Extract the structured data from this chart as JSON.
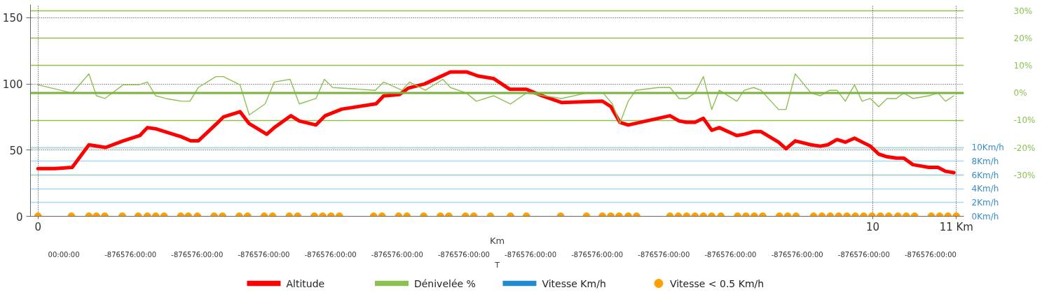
{
  "chart_data": {
    "type": "line",
    "xlabel": "Km",
    "x2label": "T",
    "xlim": [
      -0.09,
      11.09
    ],
    "xticks": [
      0,
      10,
      {
        "value": 11,
        "label": "11 Km"
      }
    ],
    "annotations": [
      "00:00:00",
      "-876576:00:00",
      "-876576:00:00",
      "-876576:00:00",
      "-876576:00:00",
      "-876576:00:00",
      "-876576:00:00",
      "-876576:00:00",
      "-876576:00:00",
      "-876576:00:00",
      "-876576:00:00",
      "-876576:00:00",
      "-876576:00:00",
      "-876576:00:00"
    ],
    "ylim": [
      0,
      160
    ],
    "yticks": [
      0,
      50,
      100,
      150
    ],
    "y2lim": [
      -45,
      32.3
    ],
    "y2ticks": [
      {
        "value": -30,
        "label": "-30%"
      },
      {
        "value": -20,
        "label": "-20%"
      },
      {
        "value": -10,
        "label": "-10%"
      },
      {
        "value": 0,
        "label": "0%"
      },
      {
        "value": 10,
        "label": "10%"
      },
      {
        "value": 20,
        "label": "20%"
      },
      {
        "value": 30,
        "label": "30%"
      }
    ],
    "y3lim": [
      0,
      30.85
    ],
    "y3ticks": [
      {
        "value": 0,
        "label": "0Km/h"
      },
      {
        "value": 2,
        "label": "2Km/h"
      },
      {
        "value": 4,
        "label": "4Km/h"
      },
      {
        "value": 6,
        "label": "6Km/h"
      },
      {
        "value": 8,
        "label": "8Km/h"
      },
      {
        "value": 10,
        "label": "10Km/h"
      }
    ],
    "grid": true,
    "legend": "bottom",
    "ref_lines": [
      {
        "axis": "y2",
        "value": 0,
        "color": "#7cb342"
      }
    ],
    "series": [
      {
        "name": "Altitude",
        "axis": "y",
        "color": "#ff0000",
        "marker": "none",
        "line_style": "solid",
        "x": [
          0.0,
          0.2,
          0.41,
          0.61,
          0.81,
          1.02,
          1.22,
          1.31,
          1.42,
          1.72,
          1.83,
          1.92,
          2.14,
          2.22,
          2.42,
          2.53,
          2.74,
          2.83,
          3.03,
          3.13,
          3.33,
          3.44,
          3.64,
          4.05,
          4.14,
          4.33,
          4.44,
          4.63,
          4.94,
          5.14,
          5.27,
          5.46,
          5.65,
          5.85,
          6.04,
          6.27,
          6.76,
          6.86,
          6.97,
          7.07,
          7.57,
          7.68,
          7.77,
          7.87,
          7.97,
          8.07,
          8.16,
          8.37,
          8.46,
          8.57,
          8.66,
          8.87,
          8.96,
          9.07,
          9.26,
          9.37,
          9.46,
          9.57,
          9.67,
          9.78,
          9.97,
          10.07,
          10.17,
          10.28,
          10.37,
          10.48,
          10.67,
          10.78,
          10.87,
          10.97
        ],
        "values": [
          36,
          36,
          37,
          54,
          52,
          57,
          61,
          67,
          66,
          60,
          57,
          57,
          70,
          75,
          79,
          70,
          62,
          67,
          76,
          72,
          69,
          76,
          81,
          85,
          91,
          92,
          97,
          100,
          109,
          109,
          106,
          104,
          96,
          96,
          91,
          86,
          87,
          83,
          71,
          69,
          76,
          72,
          71,
          71,
          74,
          65,
          67,
          61,
          62,
          64,
          64,
          56,
          51,
          57,
          54,
          53,
          54,
          58,
          56,
          59,
          53,
          47,
          45,
          44,
          44,
          39,
          37,
          37,
          34,
          33
        ]
      },
      {
        "name": "Dénivelée %",
        "axis": "y2",
        "color": "#8cc152",
        "marker": "none",
        "line_style": "solid",
        "x": [
          0.0,
          0.41,
          0.61,
          0.7,
          0.8,
          1.02,
          1.21,
          1.31,
          1.41,
          1.53,
          1.72,
          1.82,
          1.92,
          2.13,
          2.22,
          2.42,
          2.53,
          2.72,
          2.83,
          3.02,
          3.13,
          3.33,
          3.43,
          3.53,
          4.04,
          4.14,
          4.36,
          4.45,
          4.64,
          4.85,
          4.94,
          5.13,
          5.25,
          5.46,
          5.66,
          5.85,
          6.27,
          6.57,
          6.77,
          6.88,
          6.97,
          7.07,
          7.16,
          7.43,
          7.57,
          7.68,
          7.77,
          7.87,
          7.97,
          8.07,
          8.16,
          8.37,
          8.46,
          8.57,
          8.66,
          8.87,
          8.96,
          9.07,
          9.26,
          9.37,
          9.48,
          9.57,
          9.67,
          9.78,
          9.87,
          9.97,
          10.07,
          10.17,
          10.28,
          10.37,
          10.48,
          10.67,
          10.78,
          10.87,
          10.97
        ],
        "values": [
          3,
          0,
          7,
          -1,
          -2,
          3,
          3,
          4,
          -1,
          -2,
          -3,
          -3,
          2,
          6,
          6,
          3,
          -8,
          -4,
          4,
          5,
          -4,
          -2,
          5,
          2,
          1,
          4,
          1,
          4,
          1,
          5,
          2,
          0,
          -3,
          -1,
          -4,
          0,
          -2,
          0,
          0,
          -4,
          -11,
          -3,
          1,
          2,
          2,
          -2,
          -2,
          0,
          6,
          -6,
          1,
          -3,
          1,
          2,
          1,
          -6,
          -6,
          7,
          0,
          -1,
          1,
          1,
          -3,
          3,
          -3,
          -2,
          -5,
          -2,
          -2,
          0,
          -2,
          -1,
          0,
          -3,
          -1
        ]
      },
      {
        "name": "Vitesse Km/h",
        "axis": "y3",
        "color": "#1f8ad0",
        "marker": "none",
        "line_style": "solid"
      },
      {
        "name": "Vitesse < 0.5 Km/h",
        "type": "scatter",
        "axis": "y3",
        "color": "#ffa000",
        "marker": "circle",
        "x": [
          0.0,
          0.4,
          0.61,
          0.7,
          0.8,
          1.01,
          1.2,
          1.31,
          1.41,
          1.51,
          1.71,
          1.8,
          1.91,
          2.11,
          2.21,
          2.41,
          2.51,
          2.71,
          2.81,
          3.01,
          3.11,
          3.31,
          3.41,
          3.51,
          3.61,
          4.02,
          4.12,
          4.32,
          4.42,
          4.62,
          4.82,
          4.92,
          5.12,
          5.22,
          5.42,
          5.66,
          5.85,
          6.26,
          6.57,
          6.76,
          6.86,
          6.96,
          7.07,
          7.17,
          7.57,
          7.67,
          7.77,
          7.87,
          7.97,
          8.07,
          8.18,
          8.38,
          8.48,
          8.58,
          8.68,
          8.88,
          8.98,
          9.08,
          9.29,
          9.39,
          9.49,
          9.59,
          9.69,
          9.79,
          9.89,
          9.99,
          10.09,
          10.19,
          10.3,
          10.4,
          10.5,
          10.7,
          10.8,
          10.9,
          11.0
        ],
        "values": [
          0,
          0,
          0,
          0,
          0,
          0,
          0,
          0,
          0,
          0,
          0,
          0,
          0,
          0,
          0,
          0,
          0,
          0,
          0,
          0,
          0,
          0,
          0,
          0,
          0,
          0,
          0,
          0,
          0,
          0,
          0,
          0,
          0,
          0,
          0,
          0,
          0,
          0,
          0,
          0,
          0,
          0,
          0,
          0,
          0,
          0,
          0,
          0,
          0,
          0,
          0,
          0,
          0,
          0,
          0,
          0,
          0,
          0,
          0,
          0,
          0,
          0,
          0,
          0,
          0,
          0,
          0,
          0,
          0,
          0,
          0,
          0,
          0,
          0,
          0
        ]
      }
    ]
  }
}
